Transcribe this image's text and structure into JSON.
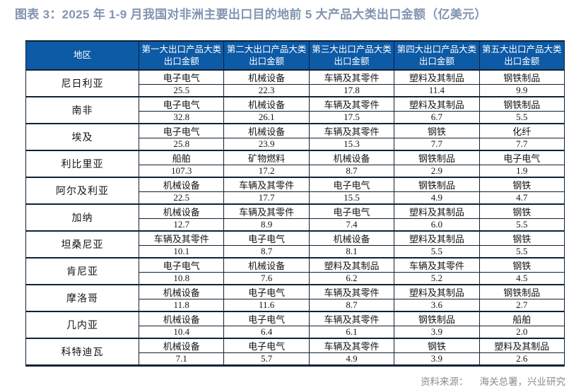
{
  "title": "图表 3：2025 年 1-9 月我国对非洲主要出口目的地前 5 大产品大类出口金额（亿美元）",
  "source": {
    "label": "资料来源：",
    "text": "海关总署，兴业研究"
  },
  "colors": {
    "title": "#8394B1",
    "header_background": "#0D5AA6",
    "header_text": "#FFFFFF",
    "border": "#0E2233",
    "body_text": "#141414",
    "source_text": "#8C8C8C"
  },
  "chart_data": {
    "type": "table",
    "title": "图表 3：2025 年 1-9 月我国对非洲主要出口目的地前 5 大产品大类出口金额（亿美元）",
    "unit": "亿美元",
    "header": {
      "region": "地区",
      "product_columns": [
        {
          "line1": "第一大出口产品大类",
          "line2": "出口金额"
        },
        {
          "line1": "第二大出口产品大类",
          "line2": "出口金额"
        },
        {
          "line1": "第三大出口产品大类",
          "line2": "出口金额"
        },
        {
          "line1": "第四大出口产品大类",
          "line2": "出口金额"
        },
        {
          "line1": "第五大出口产品大类",
          "line2": "出口金额"
        }
      ]
    },
    "rows": [
      {
        "region": "尼日利亚",
        "products": [
          "电子电气",
          "机械设备",
          "车辆及其零件",
          "塑料及其制品",
          "钢铁制品"
        ],
        "values": [
          "25.5",
          "22.3",
          "17.8",
          "11.4",
          "9.9"
        ]
      },
      {
        "region": "南非",
        "products": [
          "电子电气",
          "机械设备",
          "车辆及其零件",
          "塑料及其制品",
          "钢铁制品"
        ],
        "values": [
          "32.8",
          "26.1",
          "17.5",
          "6.7",
          "5.5"
        ]
      },
      {
        "region": "埃及",
        "products": [
          "电子电气",
          "机械设备",
          "车辆及其零件",
          "钢铁",
          "化纤"
        ],
        "values": [
          "25.8",
          "23.9",
          "15.3",
          "7.7",
          "7.7"
        ]
      },
      {
        "region": "利比里亚",
        "products": [
          "船舶",
          "矿物燃料",
          "机械设备",
          "钢铁制品",
          "电子电气"
        ],
        "values": [
          "107.3",
          "17.2",
          "8.7",
          "2.9",
          "1.9"
        ]
      },
      {
        "region": "阿尔及利亚",
        "products": [
          "机械设备",
          "车辆及其零件",
          "电子电气",
          "钢铁制品",
          "钢铁"
        ],
        "values": [
          "22.5",
          "17.7",
          "15.5",
          "4.9",
          "4.7"
        ]
      },
      {
        "region": "加纳",
        "products": [
          "机械设备",
          "车辆及其零件",
          "电子电气",
          "塑料及其制品",
          "钢铁"
        ],
        "values": [
          "12.7",
          "8.9",
          "7.4",
          "6.0",
          "5.5"
        ]
      },
      {
        "region": "坦桑尼亚",
        "products": [
          "车辆及其零件",
          "电子电气",
          "机械设备",
          "塑料及其制品",
          "钢铁"
        ],
        "values": [
          "10.1",
          "8.7",
          "8.1",
          "5.5",
          "5.5"
        ]
      },
      {
        "region": "肯尼亚",
        "products": [
          "电子电气",
          "机械设备",
          "塑料及其制品",
          "车辆及其零件",
          "钢铁"
        ],
        "values": [
          "10.8",
          "7.6",
          "6.2",
          "5.2",
          "4.5"
        ]
      },
      {
        "region": "摩洛哥",
        "products": [
          "机械设备",
          "电子电气",
          "车辆及其零件",
          "塑料及其制品",
          "钢铁制品"
        ],
        "values": [
          "11.8",
          "11.6",
          "8.7",
          "3.6",
          "2.7"
        ]
      },
      {
        "region": "几内亚",
        "products": [
          "机械设备",
          "电子电气",
          "车辆及其零件",
          "钢铁制品",
          "船舶"
        ],
        "values": [
          "10.4",
          "6.4",
          "6.1",
          "3.9",
          "2.0"
        ]
      },
      {
        "region": "科特迪瓦",
        "products": [
          "机械设备",
          "电子电气",
          "车辆及其零件",
          "钢铁",
          "塑料及其制品"
        ],
        "values": [
          "7.1",
          "5.7",
          "4.9",
          "3.9",
          "2.6"
        ]
      }
    ]
  }
}
